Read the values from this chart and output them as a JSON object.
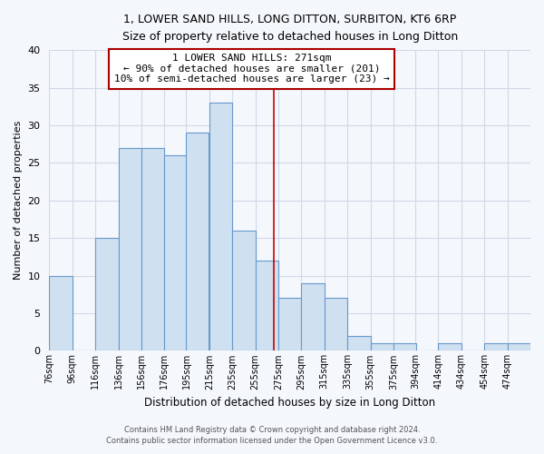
{
  "title": "1, LOWER SAND HILLS, LONG DITTON, SURBITON, KT6 6RP",
  "subtitle": "Size of property relative to detached houses in Long Ditton",
  "xlabel": "Distribution of detached houses by size in Long Ditton",
  "ylabel": "Number of detached properties",
  "bar_labels": [
    "76sqm",
    "96sqm",
    "116sqm",
    "136sqm",
    "156sqm",
    "176sqm",
    "195sqm",
    "215sqm",
    "235sqm",
    "255sqm",
    "275sqm",
    "295sqm",
    "315sqm",
    "335sqm",
    "355sqm",
    "375sqm",
    "394sqm",
    "414sqm",
    "434sqm",
    "454sqm",
    "474sqm"
  ],
  "bar_values": [
    10,
    0,
    15,
    27,
    27,
    26,
    29,
    33,
    16,
    12,
    7,
    9,
    7,
    2,
    1,
    1,
    0,
    1,
    0,
    1,
    1
  ],
  "bar_color": "#cfe0f0",
  "bar_edge_color": "#6699cc",
  "annotation_text_line1": "1 LOWER SAND HILLS: 271sqm",
  "annotation_text_line2": "← 90% of detached houses are smaller (201)",
  "annotation_text_line3": "10% of semi-detached houses are larger (23) →",
  "annotation_box_color": "#ffffff",
  "annotation_box_edge": "#aa0000",
  "vline_color": "#cc0000",
  "ylim": [
    0,
    40
  ],
  "yticks": [
    0,
    5,
    10,
    15,
    20,
    25,
    30,
    35,
    40
  ],
  "footnote1": "Contains HM Land Registry data © Crown copyright and database right 2024.",
  "footnote2": "Contains public sector information licensed under the Open Government Licence v3.0.",
  "bg_color": "#f4f7fb",
  "plot_bg_color": "#f4f7fb",
  "grid_color": "#d0d8e8",
  "bar_widths": [
    20,
    20,
    20,
    20,
    20,
    20,
    19,
    20,
    20,
    20,
    20,
    20,
    20,
    20,
    20,
    20,
    19,
    20,
    20,
    20,
    20
  ]
}
